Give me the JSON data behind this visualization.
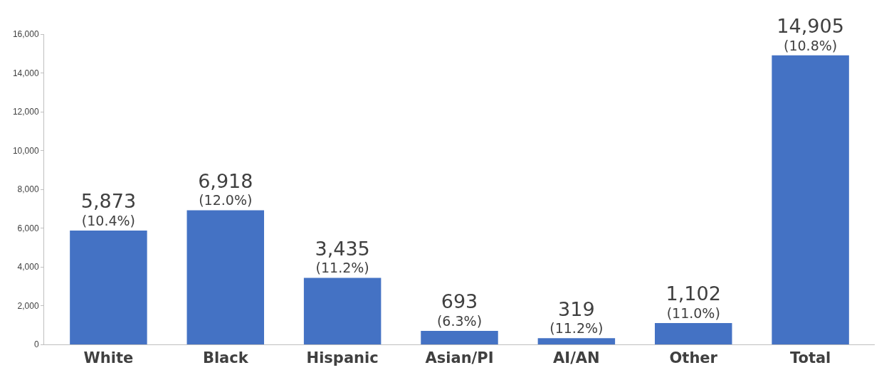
{
  "chart_data": {
    "type": "bar",
    "categories": [
      "White",
      "Black",
      "Hispanic",
      "Asian/PI",
      "AI/AN",
      "Other",
      "Total"
    ],
    "values": [
      5873,
      6918,
      3435,
      693,
      319,
      1102,
      14905
    ],
    "value_labels": [
      "5,873\n(10.4%)",
      "6,918\n(12.0%)",
      "3,435\n(11.2%)",
      "693\n(6.3%)",
      "319\n(11.2%)",
      "1,102\n(11.0%)",
      "14,905\n(10.8%)"
    ],
    "color": "#4472c4",
    "ylim": [
      0,
      16000
    ],
    "yticks": [
      0,
      {
        "value": 2000,
        "label": "2,000"
      },
      {
        "value": 4000,
        "label": "4,000"
      },
      {
        "value": 6000,
        "label": "6,000"
      },
      {
        "value": 8000,
        "label": "8,000"
      },
      {
        "value": 10000,
        "label": "10,000"
      },
      {
        "value": 12000,
        "label": "12,000"
      },
      {
        "value": 14000,
        "label": "14,000"
      },
      {
        "value": 16000,
        "label": "16,000"
      }
    ],
    "grid": false,
    "legend": false
  }
}
